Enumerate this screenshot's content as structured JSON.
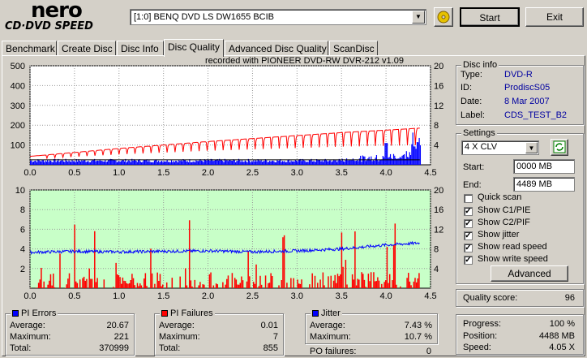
{
  "logo": {
    "brand": "nero",
    "product": "CD·DVD SPEED"
  },
  "drive": {
    "selected": "[1:0]  BENQ DVD LS DW1655 BCIB"
  },
  "buttons": {
    "start": "Start",
    "exit": "Exit",
    "advanced": "Advanced"
  },
  "tabs": [
    "Benchmark",
    "Create Disc",
    "Disc Info",
    "Disc Quality",
    "Advanced Disc Quality",
    "ScanDisc"
  ],
  "active_tab": "Disc Quality",
  "recorded_with": "recorded with PIONEER DVD-RW  DVR-212  v1.09",
  "disc_info": {
    "title": "Disc info",
    "type_label": "Type:",
    "type": "DVD-R",
    "id_label": "ID:",
    "id": "ProdiscS05",
    "date_label": "Date:",
    "date": "8 Mar 2007",
    "label_label": "Label:",
    "label": "CDS_TEST_B2"
  },
  "settings": {
    "title": "Settings",
    "speed": "4 X CLV",
    "start_label": "Start:",
    "start": "0000 MB",
    "end_label": "End:",
    "end": "4489 MB",
    "checks": [
      {
        "label": "Quick scan",
        "checked": false
      },
      {
        "label": "Show C1/PIE",
        "checked": true
      },
      {
        "label": "Show C2/PIF",
        "checked": true
      },
      {
        "label": "Show jitter",
        "checked": true
      },
      {
        "label": "Show read speed",
        "checked": true
      },
      {
        "label": "Show write speed",
        "checked": true
      }
    ]
  },
  "quality": {
    "label": "Quality score:",
    "value": "96"
  },
  "progress": {
    "progress_label": "Progress:",
    "progress": "100 %",
    "position_label": "Position:",
    "position": "4488 MB",
    "speed_label": "Speed:",
    "speed": "4.05 X"
  },
  "pi_errors": {
    "title": "PI Errors",
    "avg_label": "Average:",
    "avg": "20.67",
    "max_label": "Maximum:",
    "max": "221",
    "total_label": "Total:",
    "total": "370999"
  },
  "pi_failures": {
    "title": "PI Failures",
    "avg_label": "Average:",
    "avg": "0.01",
    "max_label": "Maximum:",
    "max": "7",
    "total_label": "Total:",
    "total": "855"
  },
  "jitter": {
    "title": "Jitter",
    "avg_label": "Average:",
    "avg": "7.43 %",
    "max_label": "Maximum:",
    "max": "10.7 %"
  },
  "po_failures": {
    "label": "PO failures:",
    "value": "0"
  },
  "colors": {
    "pie": "#0000ff",
    "pif": "#ff0000",
    "speed": "#ff0000",
    "jitter": "#0000ff",
    "top_bg": "#ffffff",
    "bottom_bg": "#c8ffc8"
  },
  "chart_data": [
    {
      "type": "bar",
      "title": "",
      "x_ticks": [
        "0.0",
        "0.5",
        "1.0",
        "1.5",
        "2.0",
        "2.5",
        "3.0",
        "3.5",
        "4.0",
        "4.5"
      ],
      "xlim": [
        0,
        4.5
      ],
      "y_left_ticks": [
        "100",
        "200",
        "300",
        "400",
        "500"
      ],
      "ylim_left": [
        0,
        500
      ],
      "y_right_ticks": [
        "4",
        "8",
        "12",
        "16",
        "20"
      ],
      "ylim_right": [
        0,
        20
      ],
      "series": [
        {
          "kind": "bars",
          "x_start": 0.0,
          "x_end": 4.38,
          "baseline": 20,
          "tail": [
            [
              3.5,
              40
            ],
            [
              3.8,
              60
            ],
            [
              3.9,
              40
            ],
            [
              4.0,
              110
            ],
            [
              4.1,
              70
            ],
            [
              4.2,
              90
            ],
            [
              4.3,
              140
            ],
            [
              4.35,
              221
            ]
          ]
        },
        {
          "kind": "line",
          "axis": "right",
          "x": [
            0.0,
            0.5,
            1.0,
            1.5,
            2.0,
            2.5,
            3.0,
            3.5,
            4.0,
            4.38
          ],
          "y": [
            1.7,
            2.5,
            3.3,
            4.0,
            4.7,
            5.3,
            5.9,
            6.5,
            7.0,
            7.4
          ],
          "dips_every": 0.09
        }
      ]
    },
    {
      "type": "bar",
      "title": "",
      "x_ticks": [
        "0.0",
        "0.5",
        "1.0",
        "1.5",
        "2.0",
        "2.5",
        "3.0",
        "3.5",
        "4.0",
        "4.5"
      ],
      "xlim": [
        0,
        4.5
      ],
      "y_left_ticks": [
        "2",
        "4",
        "6",
        "8",
        "10"
      ],
      "ylim_left": [
        0,
        10
      ],
      "y_right_ticks": [
        "4",
        "8",
        "12",
        "16",
        "20"
      ],
      "ylim_right": [
        0,
        20
      ],
      "series": [
        {
          "kind": "bars",
          "max": 7
        },
        {
          "kind": "line",
          "axis": "right",
          "x": [
            0.0,
            0.5,
            1.0,
            1.5,
            2.0,
            2.5,
            3.0,
            3.5,
            4.0,
            4.38
          ],
          "y": [
            7.3,
            7.5,
            7.4,
            7.5,
            7.6,
            7.4,
            7.6,
            8.0,
            8.8,
            9.2
          ]
        }
      ]
    }
  ]
}
